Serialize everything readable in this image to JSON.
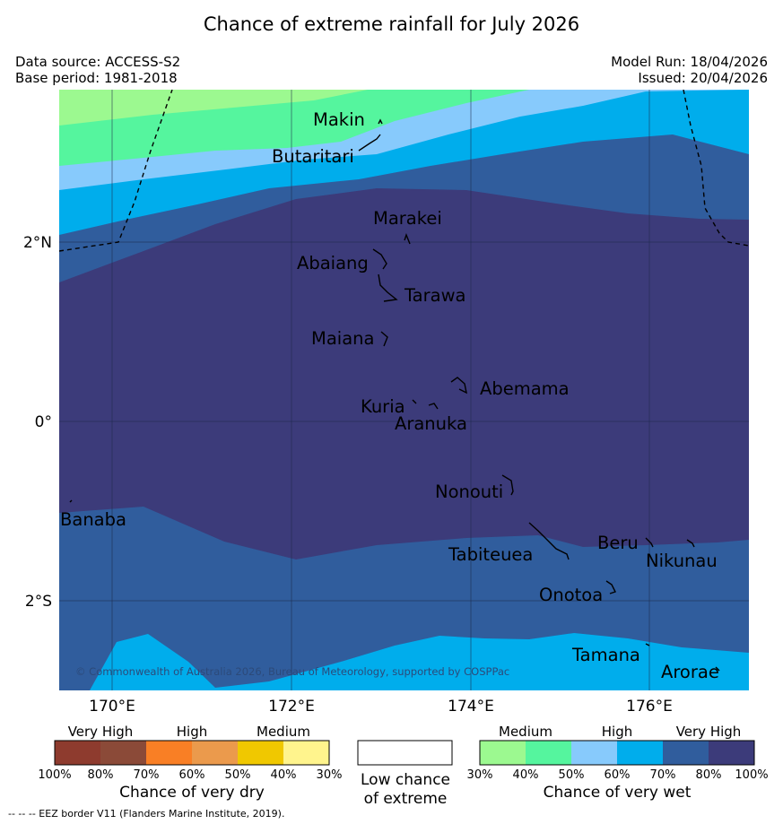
{
  "title": "Chance of extreme rainfall for July 2026",
  "meta": {
    "data_source": "Data source: ACCESS-S2",
    "base_period": "Base period: 1981-2018",
    "model_run": "Model Run: 18/04/2026",
    "issued": "Issued: 20/04/2026"
  },
  "map": {
    "lon_labels": [
      "170°E",
      "172°E",
      "174°E",
      "176°E"
    ],
    "lat_labels": [
      "2°N",
      "0°",
      "2°S"
    ],
    "places": [
      "Makin",
      "Butaritari",
      "Marakei",
      "Abaiang",
      "Tarawa",
      "Maiana",
      "Abemama",
      "Kuria",
      "Aranuka",
      "Nonouti",
      "Banaba",
      "Tabiteuea",
      "Beru",
      "Nikunau",
      "Onotoa",
      "Tamana",
      "Arorae"
    ],
    "copyright": "© Commonwealth of Australia 2026, Bureau of Meteorology, supported by COSPPac"
  },
  "legend": {
    "dry": {
      "categories": [
        "Very High",
        "High",
        "Medium"
      ],
      "colors": [
        "#8e3b2e",
        "#8b4a38",
        "#f97f25",
        "#eb9a4c",
        "#f0c800",
        "#fff48d"
      ],
      "ticks": [
        "100%",
        "80%",
        "70%",
        "60%",
        "50%",
        "40%",
        "30%"
      ],
      "title": "Chance of very dry"
    },
    "low": {
      "line1": "Low chance",
      "line2": "of extreme",
      "color": "#ffffff"
    },
    "wet": {
      "categories": [
        "Medium",
        "High",
        "Very High"
      ],
      "colors": [
        "#9cf990",
        "#55f59e",
        "#87cafc",
        "#00adec",
        "#305d9d",
        "#3c3b7a"
      ],
      "ticks": [
        "30%",
        "40%",
        "50%",
        "60%",
        "70%",
        "80%",
        "100%"
      ],
      "title": "Chance of very wet"
    }
  },
  "footer": "--  --  -- EEZ border V11 (Flanders Marine Institute, 2019)."
}
